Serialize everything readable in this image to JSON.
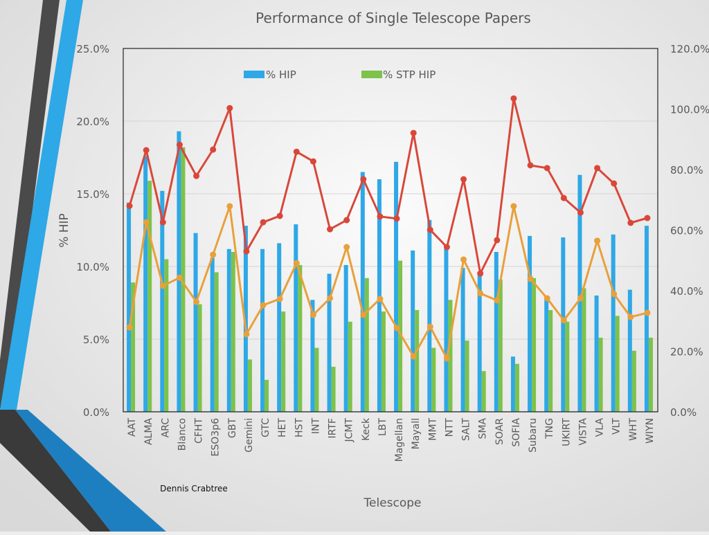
{
  "chart_data": {
    "type": "bar",
    "title": "Performance of Single Telescope Papers",
    "xlabel": "Telescope",
    "ylabel": "% HIP",
    "ylim": [
      0,
      25
    ],
    "y2lim": [
      0,
      120
    ],
    "yticks": [
      "0.0%",
      "5.0%",
      "10.0%",
      "15.0%",
      "20.0%",
      "25.0%"
    ],
    "y2ticks": [
      "0.0%",
      "20.0%",
      "40.0%",
      "60.0%",
      "80.0%",
      "100.0%",
      "120.0%"
    ],
    "grid": true,
    "legend_placement": "top",
    "categories": [
      "AAT",
      "ALMA",
      "ARC",
      "Blanco",
      "CFHT",
      "ESO3p6",
      "GBT",
      "Gemini",
      "GTC",
      "HET",
      "HST",
      "INT",
      "IRTF",
      "JCMT",
      "Keck",
      "LBT",
      "Magellan",
      "Mayall",
      "MMT",
      "NTT",
      "SALT",
      "SMA",
      "SOAR",
      "SOFIA",
      "Subaru",
      "TNG",
      "UKIRT",
      "VISTA",
      "VLA",
      "VLT",
      "WHT",
      "WIYN"
    ],
    "series": [
      {
        "name": "% HIP",
        "kind": "bar",
        "axis": "left",
        "color": "#2ea8e6",
        "values": [
          14.4,
          17.6,
          15.2,
          19.3,
          12.3,
          10.6,
          11.2,
          12.8,
          11.2,
          11.6,
          12.9,
          7.7,
          9.5,
          10.1,
          16.5,
          16.0,
          17.2,
          11.1,
          13.2,
          11.4,
          9.9,
          9.4,
          11.0,
          3.8,
          12.1,
          7.9,
          12.0,
          16.3,
          8.0,
          12.2,
          8.4,
          12.8
        ]
      },
      {
        "name": "% STP HIP",
        "kind": "bar",
        "axis": "left",
        "color": "#7dc24b",
        "values": [
          8.9,
          15.9,
          10.5,
          18.2,
          7.4,
          9.6,
          11.0,
          3.6,
          2.2,
          6.9,
          10.1,
          4.4,
          3.1,
          6.2,
          9.2,
          6.9,
          10.4,
          7.0,
          4.4,
          7.7,
          4.9,
          2.8,
          9.1,
          3.3,
          9.2,
          7.0,
          6.2,
          8.5,
          5.1,
          6.6,
          4.2,
          5.1
        ]
      },
      {
        "kind": "line",
        "axis": "right",
        "color": "#d9473a",
        "values": [
          68.0,
          86.4,
          62.6,
          88.2,
          77.9,
          86.6,
          100.3,
          53.0,
          62.6,
          64.7,
          85.9,
          82.7,
          60.3,
          63.3,
          76.8,
          64.5,
          63.8,
          92.1,
          60.1,
          54.4,
          76.8,
          45.7,
          56.7,
          103.5,
          81.4,
          80.5,
          70.6,
          65.8,
          80.5,
          75.4,
          62.4,
          64.0
        ]
      },
      {
        "kind": "line",
        "axis": "right",
        "color": "#e8a03a",
        "values": [
          27.9,
          62.6,
          41.6,
          44.3,
          36.3,
          51.9,
          67.9,
          25.6,
          35.2,
          37.3,
          49.1,
          32.0,
          37.5,
          54.4,
          32.0,
          37.3,
          27.7,
          18.3,
          28.1,
          17.6,
          50.3,
          39.1,
          36.8,
          67.9,
          43.9,
          37.5,
          30.2,
          37.5,
          56.5,
          38.9,
          31.3,
          32.7
        ]
      }
    ]
  },
  "footer": {
    "author": "Dennis Crabtree"
  }
}
